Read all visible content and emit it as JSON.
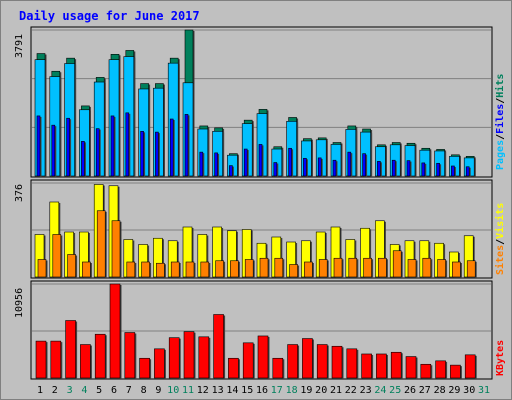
{
  "title": "Daily usage for June 2017",
  "colors": {
    "background": "#c0c0c0",
    "title": "#0000ff",
    "panel_bg": "#c0c0c0",
    "grid": "#808080",
    "hits": "#00805c",
    "files": "#0000ff",
    "pages": "#00c0ff",
    "visits": "#ffff00",
    "sites": "#ff8000",
    "kbytes": "#ff0000",
    "weekend": "#00805c",
    "weekday": "#000000"
  },
  "chart_data": [
    {
      "type": "bar",
      "panel": "hits-files-pages",
      "max_label": "3791",
      "ylim": [
        0,
        3791
      ],
      "legend": [
        "Pages",
        "Files",
        "Hits"
      ],
      "series": [
        {
          "name": "Hits",
          "values": [
            3180,
            2720,
            3060,
            1820,
            2560,
            3160,
            3260,
            2400,
            2400,
            3060,
            3791,
            1300,
            1250,
            580,
            1450,
            1730,
            760,
            1520,
            970,
            990,
            870,
            1300,
            1220,
            810,
            870,
            850,
            720,
            690,
            550,
            510,
            0
          ]
        },
        {
          "name": "Files",
          "values": [
            3020,
            2580,
            2920,
            1720,
            2440,
            3020,
            3100,
            2260,
            2280,
            2930,
            2420,
            1220,
            1160,
            540,
            1360,
            1620,
            700,
            1420,
            910,
            940,
            820,
            1210,
            1140,
            760,
            810,
            790,
            670,
            650,
            510,
            470,
            0
          ]
        },
        {
          "name": "Pages",
          "values": [
            1560,
            1320,
            1500,
            900,
            1230,
            1560,
            1640,
            1160,
            1140,
            1480,
            1600,
            620,
            600,
            270,
            700,
            820,
            350,
            720,
            460,
            470,
            410,
            620,
            580,
            380,
            410,
            400,
            340,
            330,
            260,
            240,
            0
          ]
        }
      ]
    },
    {
      "type": "bar",
      "panel": "visits-sites",
      "max_label": "376",
      "ylim": [
        0,
        376
      ],
      "legend": [
        "Sites",
        "Visits"
      ],
      "series": [
        {
          "name": "Visits",
          "values": [
            170,
            300,
            180,
            180,
            370,
            365,
            150,
            130,
            155,
            145,
            200,
            170,
            200,
            185,
            190,
            135,
            160,
            140,
            145,
            180,
            200,
            150,
            195,
            225,
            130,
            145,
            145,
            135,
            100,
            165,
            0
          ]
        },
        {
          "name": "Sites",
          "values": [
            70,
            170,
            90,
            60,
            265,
            225,
            60,
            60,
            55,
            60,
            60,
            60,
            65,
            65,
            70,
            75,
            75,
            50,
            60,
            70,
            75,
            75,
            75,
            75,
            105,
            70,
            75,
            70,
            60,
            65,
            0
          ]
        }
      ]
    },
    {
      "type": "bar",
      "panel": "kbytes",
      "max_label": "10956",
      "ylim": [
        0,
        10956
      ],
      "legend": [
        "KBytes"
      ],
      "series": [
        {
          "name": "KBytes",
          "values": [
            4300,
            4300,
            6700,
            3900,
            5100,
            10956,
            5300,
            2300,
            3400,
            4700,
            5400,
            4800,
            7400,
            2300,
            4100,
            4900,
            2300,
            3900,
            4600,
            3900,
            3700,
            3400,
            2800,
            2800,
            3000,
            2500,
            1600,
            2000,
            1500,
            2700,
            0
          ]
        }
      ]
    }
  ],
  "x_labels": [
    "1",
    "2",
    "3",
    "4",
    "5",
    "6",
    "7",
    "8",
    "9",
    "10",
    "11",
    "12",
    "13",
    "14",
    "15",
    "16",
    "17",
    "18",
    "19",
    "20",
    "21",
    "22",
    "23",
    "24",
    "25",
    "26",
    "27",
    "28",
    "29",
    "30",
    "31"
  ],
  "weekend_days": [
    "3",
    "4",
    "10",
    "11",
    "17",
    "18",
    "24",
    "25",
    "31"
  ]
}
